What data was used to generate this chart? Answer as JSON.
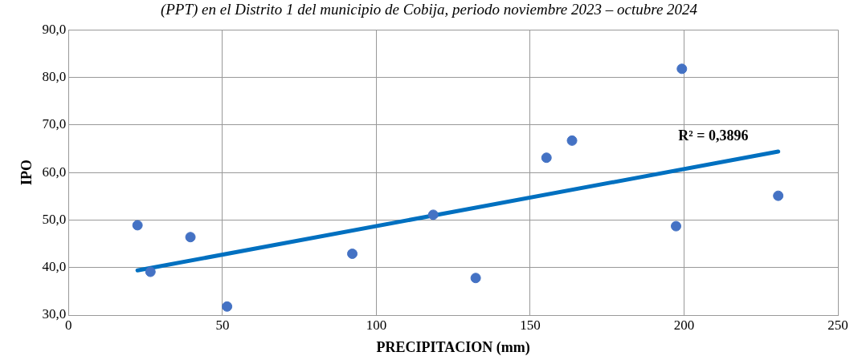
{
  "chart_data": {
    "type": "scatter",
    "title": "(PPT) en el Distrito 1 del municipio de Cobija, periodo noviembre 2023 – octubre 2024",
    "xlabel": "PRECIPITACION (mm)",
    "ylabel": "IPO",
    "series": [
      {
        "color": "#4472c4",
        "x": [
          22.4,
          26.6,
          39.6,
          51.5,
          92.2,
          118.5,
          132.3,
          155.3,
          163.6,
          199.3,
          197.4,
          230.6
        ],
        "values": [
          48.9,
          39.1,
          46.4,
          31.8,
          42.9,
          51.1,
          37.8,
          63.1,
          66.7,
          81.8,
          48.7,
          55.1
        ]
      },
      {
        "type": "line",
        "marker": "none",
        "color": "#0070c0",
        "x": [
          22.4,
          230.6
        ],
        "values": [
          39.4,
          64.4
        ]
      }
    ],
    "annotations": [
      "R² = 0,3896"
    ],
    "xlim": [
      0,
      250
    ],
    "xticks": [
      0,
      50,
      100,
      150,
      200,
      250
    ],
    "ylim": [
      30,
      90
    ],
    "yticks": [
      {
        "value": 30,
        "label": "30,0"
      },
      {
        "value": 40,
        "label": "40,0"
      },
      {
        "value": 50,
        "label": "50,0"
      },
      {
        "value": 60,
        "label": "60,0"
      },
      {
        "value": 70,
        "label": "70,0"
      },
      {
        "value": 80,
        "label": "80,0"
      },
      {
        "value": 90,
        "label": "90,0"
      }
    ],
    "grid": true,
    "marker": "circle",
    "legend": false
  }
}
